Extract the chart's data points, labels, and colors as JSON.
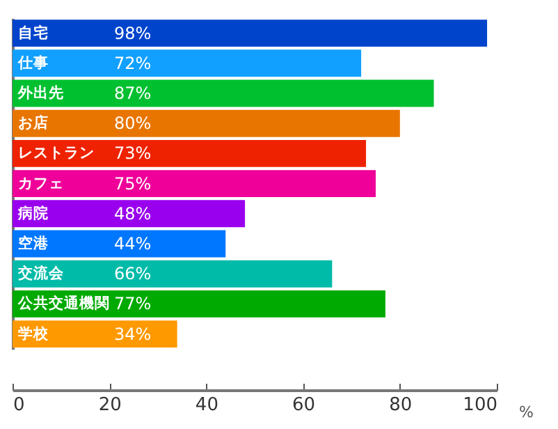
{
  "chart_data": {
    "type": "bar",
    "orientation": "horizontal",
    "xlabel": "%",
    "categories": [
      "自宅",
      "仕事",
      "外出先",
      "お店",
      "レストラン",
      "カフェ",
      "病院",
      "空港",
      "交流会",
      "公共交通機関",
      "学校"
    ],
    "values": [
      98,
      72,
      87,
      80,
      73,
      75,
      48,
      44,
      66,
      77,
      34
    ],
    "colors": [
      "#0044cc",
      "#11a0ff",
      "#00c030",
      "#e87500",
      "#ee2200",
      "#ee0099",
      "#9900ee",
      "#0077ff",
      "#00bba8",
      "#00aa00",
      "#ff9900"
    ],
    "value_labels": [
      "98%",
      "72%",
      "87%",
      "80%",
      "73%",
      "75%",
      "48%",
      "44%",
      "66%",
      "77%",
      "34%"
    ],
    "xlim": [
      0,
      100
    ],
    "xticks": [
      0,
      20,
      40,
      60,
      80,
      100
    ],
    "grid": false,
    "legend": false
  }
}
